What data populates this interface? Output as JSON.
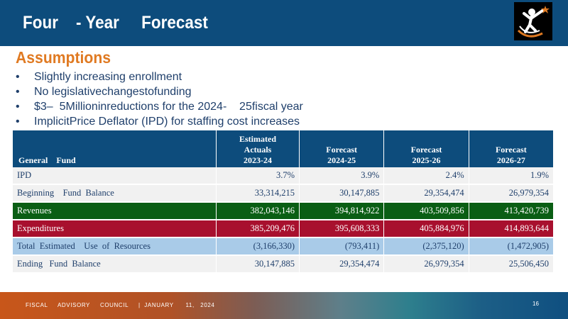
{
  "header": {
    "title": "Four    - Year     Forecast"
  },
  "assumptions": {
    "heading": "Assumptions",
    "bullets": [
      "Slightly increasing enrollment",
      "No legislativechangestofunding",
      "$3–  5Millioninreductions for the 2024-    25fiscal year",
      "ImplicitPrice Deflator (IPD) for staffing cost increases"
    ]
  },
  "table": {
    "headers": [
      "General    Fund",
      "Estimated\nActuals\n2023-24",
      "Forecast\n2024-25",
      "Forecast\n2025-26",
      "Forecast\n2026-27"
    ],
    "rows": [
      {
        "label": "IPD",
        "values": [
          "3.7%",
          "3.9%",
          "2.4%",
          "1.9%"
        ]
      },
      {
        "label": "Beginning    Fund  Balance",
        "values": [
          "33,314,215",
          "30,147,885",
          "29,354,474",
          "26,979,354"
        ]
      },
      {
        "label": "Revenues",
        "values": [
          "382,043,146",
          "394,814,922",
          "403,509,856",
          "413,420,739"
        ]
      },
      {
        "label": "Expenditures",
        "values": [
          "385,209,476",
          "395,608,333",
          "405,884,976",
          "414,893,644"
        ]
      },
      {
        "label": "Total  Estimated    Use  of  Resources",
        "values": [
          "(3,166,330)",
          "(793,411)",
          "(2,375,120)",
          "(1,472,905)"
        ]
      },
      {
        "label": "Ending   Fund  Balance",
        "values": [
          "30,147,885",
          "29,354,474",
          "26,979,354",
          "25,506,450"
        ]
      }
    ]
  },
  "footer": {
    "text": "FISCAL     ADVISORY     COUNCIL     |  JANUARY      11,   2024",
    "page": "16"
  },
  "colors": {
    "header_bg": "#0d4c7c",
    "heading": "#e07a22",
    "revenues_row": "#0a5e14",
    "expenditures_row": "#a8102e",
    "total_row": "#a9cbe8"
  },
  "icons": {
    "logo": "figure-with-star-logo"
  }
}
